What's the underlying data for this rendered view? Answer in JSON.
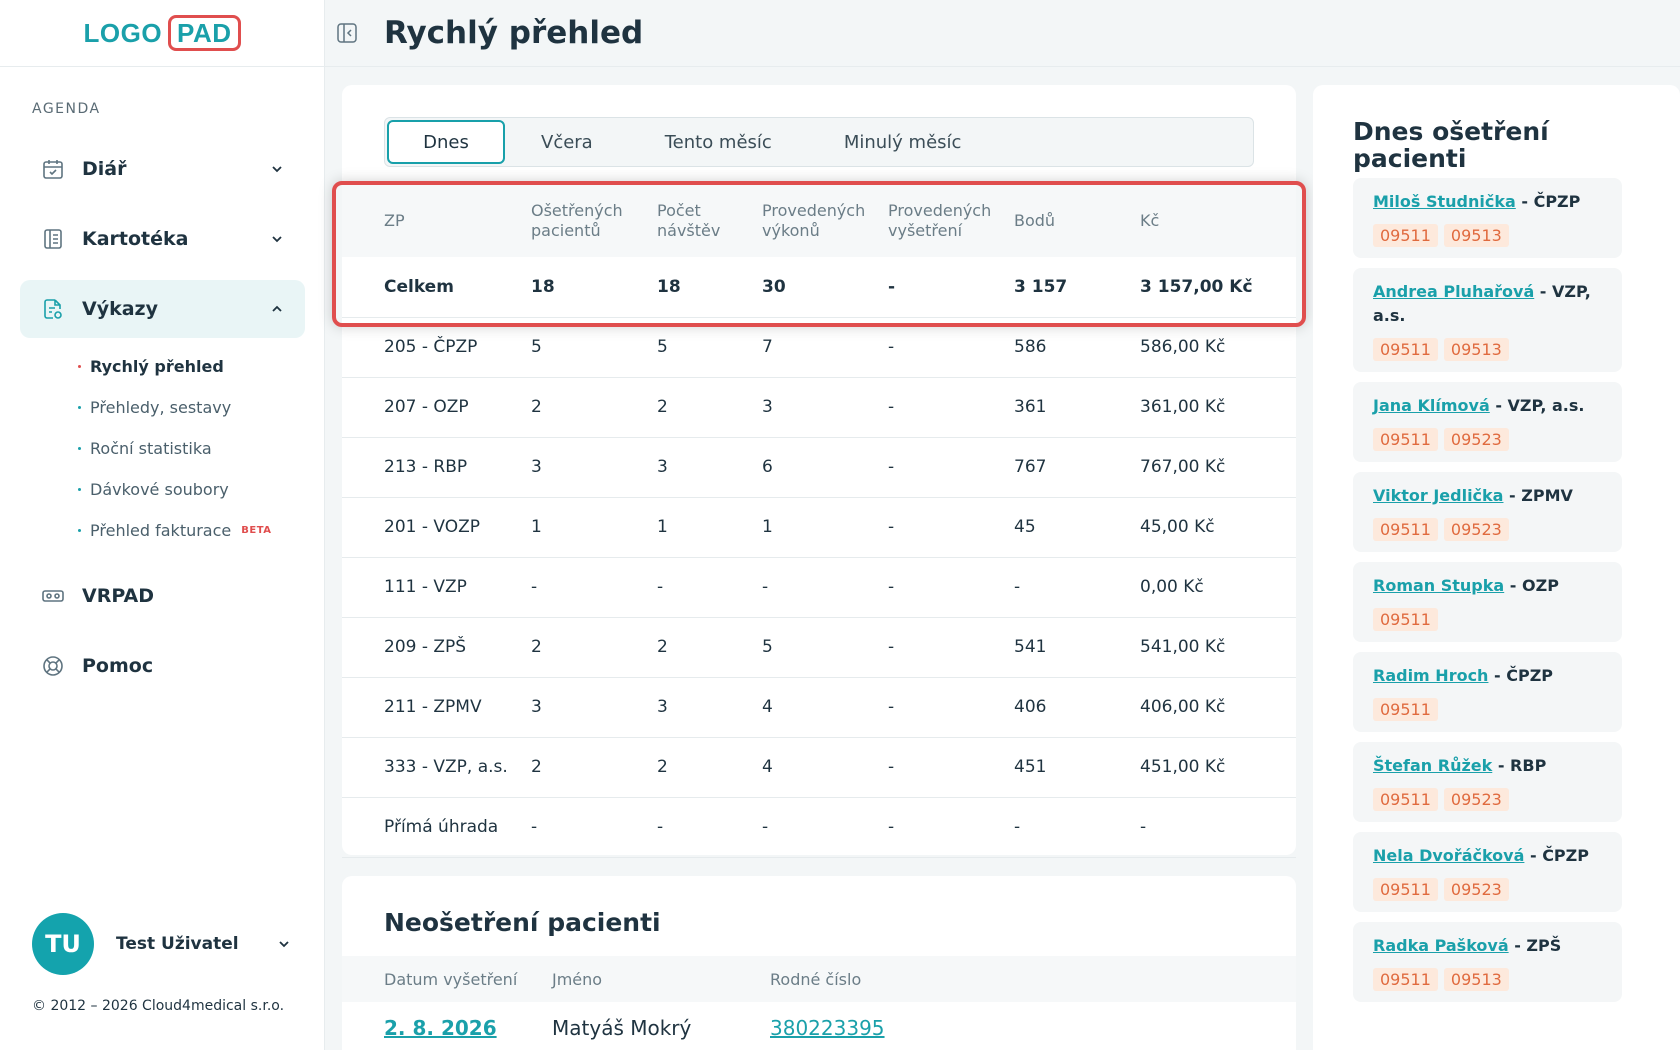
{
  "sidebar": {
    "logo": {
      "left": "LOGO",
      "right": "PAD"
    },
    "section": "AGENDA",
    "nav": [
      {
        "label": "Diář",
        "icon": "calendar-icon"
      },
      {
        "label": "Kartotéka",
        "icon": "cards-icon"
      },
      {
        "label": "Výkazy",
        "icon": "report-icon"
      },
      {
        "label": "VRPAD",
        "icon": "vr-icon"
      },
      {
        "label": "Pomoc",
        "icon": "lifebuoy-icon"
      }
    ],
    "sub": [
      "Rychlý přehled",
      "Přehledy, sestavy",
      "Roční statistika",
      "Dávkové soubory",
      "Přehled fakturace"
    ],
    "beta": "BETA",
    "user": {
      "initials": "TU",
      "name": "Test Uživatel"
    },
    "copyright": "© 2012 – 2026 Cloud4medical s.r.o."
  },
  "header": {
    "title": "Rychlý přehled"
  },
  "tabs": [
    "Dnes",
    "Včera",
    "Tento měsíc",
    "Minulý měsíc"
  ],
  "table": {
    "headers": [
      "ZP",
      "Ošetřených pacientů",
      "Počet návštěv",
      "Provedených výkonů",
      "Provedených vyšetření",
      "Bodů",
      "Kč"
    ],
    "total": [
      "Celkem",
      "18",
      "18",
      "30",
      "-",
      "3 157",
      "3 157,00 Kč"
    ],
    "rows": [
      [
        "205 - ČPZP",
        "5",
        "5",
        "7",
        "-",
        "586",
        "586,00 Kč"
      ],
      [
        "207 - OZP",
        "2",
        "2",
        "3",
        "-",
        "361",
        "361,00 Kč"
      ],
      [
        "213 - RBP",
        "3",
        "3",
        "6",
        "-",
        "767",
        "767,00 Kč"
      ],
      [
        "201 - VOZP",
        "1",
        "1",
        "1",
        "-",
        "45",
        "45,00 Kč"
      ],
      [
        "111 - VZP",
        "-",
        "-",
        "-",
        "-",
        "-",
        "0,00 Kč"
      ],
      [
        "209 - ZPŠ",
        "2",
        "2",
        "5",
        "-",
        "541",
        "541,00 Kč"
      ],
      [
        "211 - ZPMV",
        "3",
        "3",
        "4",
        "-",
        "406",
        "406,00 Kč"
      ],
      [
        "333 - VZP, a.s.",
        "2",
        "2",
        "4",
        "-",
        "451",
        "451,00 Kč"
      ],
      [
        "Přímá úhrada",
        "-",
        "-",
        "-",
        "-",
        "-",
        "-"
      ]
    ]
  },
  "neo": {
    "title": "Neošetření pacienti",
    "headers": [
      "Datum vyšetření",
      "Jméno",
      "Rodné číslo"
    ],
    "row": [
      "2. 8. 2026",
      "Matyáš Mokrý",
      "380223395"
    ]
  },
  "today": {
    "title": "Dnes ošetření pacienti",
    "patients": [
      {
        "name": "Miloš Studnička",
        "ins": " - ČPZP",
        "codes": [
          "09511",
          "09513"
        ]
      },
      {
        "name": "Andrea Pluhařová",
        "ins": " - VZP, a.s.",
        "codes": [
          "09511",
          "09513"
        ]
      },
      {
        "name": "Jana Klímová",
        "ins": " - VZP, a.s.",
        "codes": [
          "09511",
          "09523"
        ]
      },
      {
        "name": "Viktor Jedlička",
        "ins": " - ZPMV",
        "codes": [
          "09511",
          "09523"
        ]
      },
      {
        "name": "Roman Stupka",
        "ins": " - OZP",
        "codes": [
          "09511"
        ]
      },
      {
        "name": "Radim Hroch",
        "ins": " - ČPZP",
        "codes": [
          "09511"
        ]
      },
      {
        "name": "Štefan Růžek",
        "ins": " - RBP",
        "codes": [
          "09511",
          "09523"
        ]
      },
      {
        "name": "Nela Dvořáčková",
        "ins": " - ČPZP",
        "codes": [
          "09511",
          "09523"
        ]
      },
      {
        "name": "Radka Pašková",
        "ins": " - ZPŠ",
        "codes": [
          "09511",
          "09513"
        ]
      }
    ]
  }
}
